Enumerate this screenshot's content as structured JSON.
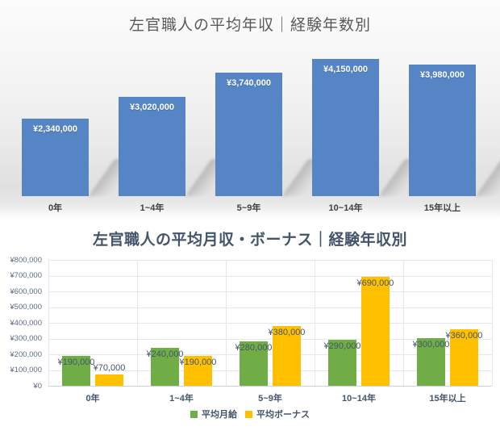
{
  "chart_data": [
    {
      "id": "average-annual-income-by-experience",
      "type": "bar",
      "title": "左官職人の平均年収｜経験年数別",
      "categories": [
        "0年",
        "1~4年",
        "5~9年",
        "10~14年",
        "15年以上"
      ],
      "values": [
        2340000,
        3020000,
        3740000,
        4150000,
        3980000
      ],
      "data_labels": [
        "¥2,340,000",
        "¥3,020,000",
        "¥3,740,000",
        "¥4,150,000",
        "¥3,980,000"
      ],
      "xlabel": "",
      "ylabel": "",
      "ylim": [
        0,
        4500000
      ],
      "grid": false,
      "legend": "none",
      "bar_color": "#5585C4",
      "data_label_color": "#FFFFFF",
      "title_color": "#595959",
      "axis_label_color": "#3F3F3F"
    },
    {
      "id": "average-monthly-salary-and-bonus-by-experience",
      "type": "bar",
      "title": "左官職人の平均月収・ボーナス｜経験年収別",
      "categories": [
        "0年",
        "1~4年",
        "5~9年",
        "10~14年",
        "15年以上"
      ],
      "series": [
        {
          "name": "平均月給",
          "color": "#70AD47",
          "values": [
            190000,
            240000,
            280000,
            290000,
            300000
          ],
          "data_labels": [
            "¥190,000",
            "¥240,000",
            "¥280,000",
            "¥290,000",
            "¥300,000"
          ]
        },
        {
          "name": "平均ボーナス",
          "color": "#FFC000",
          "values": [
            70000,
            190000,
            380000,
            690000,
            360000
          ],
          "data_labels": [
            "¥70,000",
            "¥190,000",
            "¥380,000",
            "¥690,000",
            "¥360,000"
          ]
        }
      ],
      "xlabel": "",
      "ylabel": "",
      "ylim": [
        0,
        800000
      ],
      "ytick_labels": [
        "¥800,000",
        "¥700,000",
        "¥600,000",
        "¥500,000",
        "¥400,000",
        "¥300,000",
        "¥200,000",
        "¥100,000",
        "¥0"
      ],
      "grid": true,
      "legend_position": "bottom",
      "title_color": "#44546A",
      "data_label_color": "#44546A",
      "axis_label_color": "#44546A",
      "ytick_color": "#5D6B85",
      "grid_color": "#E4E8EF",
      "baseline_color": "#CBD2DE"
    }
  ]
}
